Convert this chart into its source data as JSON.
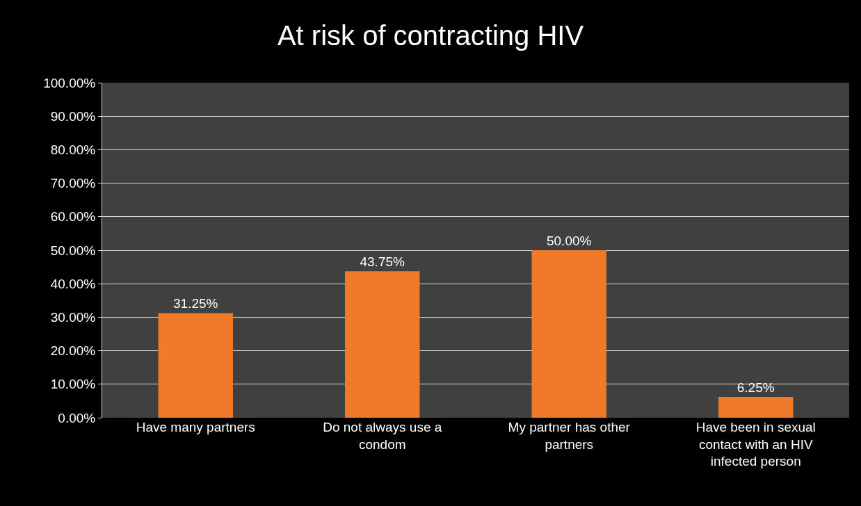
{
  "chart_data": {
    "type": "bar",
    "title": "At risk of contracting HIV",
    "categories": [
      "Have many partners",
      "Do not always use a condom",
      "My partner has other partners",
      "Have been in sexual contact with an HIV infected person"
    ],
    "values": [
      31.25,
      43.75,
      50.0,
      6.25
    ],
    "value_labels": [
      "31.25%",
      "43.75%",
      "50.00%",
      "6.25%"
    ],
    "color": "#f07a2a",
    "ylim": [
      0,
      100
    ],
    "yticks": [
      {
        "value": 0,
        "label": "0.00%"
      },
      {
        "value": 10,
        "label": "10.00%"
      },
      {
        "value": 20,
        "label": "20.00%"
      },
      {
        "value": 30,
        "label": "30.00%"
      },
      {
        "value": 40,
        "label": "40.00%"
      },
      {
        "value": 50,
        "label": "50.00%"
      },
      {
        "value": 60,
        "label": "60.00%"
      },
      {
        "value": 70,
        "label": "70.00%"
      },
      {
        "value": 80,
        "label": "80.00%"
      },
      {
        "value": 90,
        "label": "90.00%"
      },
      {
        "value": 100,
        "label": "100.00%"
      }
    ],
    "grid": "y",
    "legend": false
  }
}
